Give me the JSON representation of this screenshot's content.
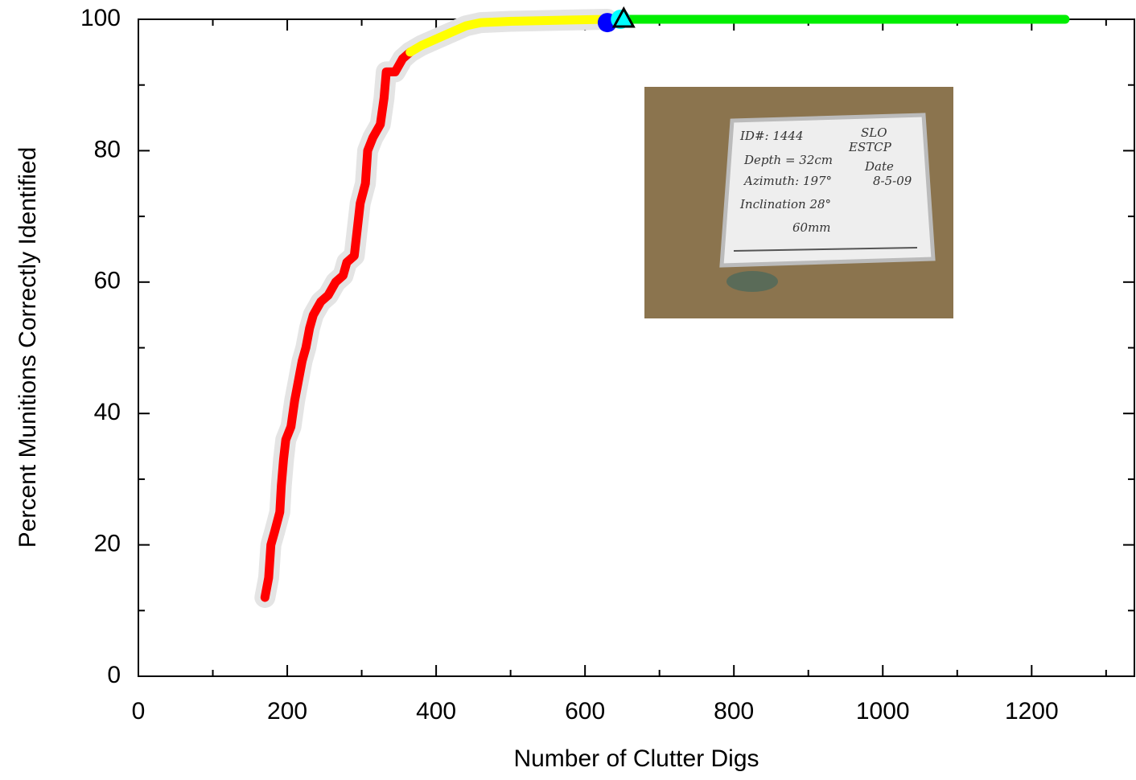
{
  "chart_data": {
    "type": "line",
    "xlabel": "Number of Clutter Digs",
    "ylabel": "Percent Munitions Correctly Identified",
    "xlim": [
      0,
      1338
    ],
    "ylim": [
      0,
      100
    ],
    "xticks": [
      0,
      200,
      400,
      600,
      800,
      1000,
      1200
    ],
    "xminorticks": [
      100,
      300,
      500,
      700,
      900,
      1100,
      1300
    ],
    "yticks": [
      0,
      20,
      40,
      60,
      80,
      100
    ],
    "yminorticks": [
      10,
      30,
      50,
      70,
      90
    ],
    "series": [
      {
        "color": "#ff0000",
        "x": [
          170,
          175,
          178,
          183,
          190,
          192,
          195,
          198,
          205,
          210,
          215,
          220,
          225,
          230,
          235,
          240,
          245,
          255,
          265,
          275,
          280,
          290,
          293,
          298,
          305,
          308,
          315,
          325,
          330,
          333,
          345,
          350,
          355,
          365
        ],
        "values": [
          12,
          15,
          20,
          22,
          25,
          29,
          33,
          36,
          38,
          42,
          45,
          48,
          50,
          53,
          55,
          56,
          57,
          58,
          60,
          61,
          63,
          64,
          67,
          72,
          75,
          80,
          82,
          84,
          88,
          92,
          92,
          93,
          94,
          95
        ]
      },
      {
        "color": "#ffff00",
        "x": [
          365,
          380,
          400,
          420,
          440,
          460,
          500,
          580,
          630
        ],
        "values": [
          95,
          96,
          97,
          98,
          99,
          99.5,
          99.7,
          99.9,
          100
        ]
      },
      {
        "color": "#00ee00",
        "x": [
          650,
          1245
        ],
        "values": [
          100,
          100
        ]
      }
    ],
    "markers": [
      {
        "shape": "circle",
        "color": "#0000ff",
        "x": 630,
        "value": 99.5
      },
      {
        "shape": "triangle",
        "color": "#00ffff",
        "x": 652,
        "value": 100
      }
    ],
    "inset_photo": {
      "lines": [
        "ID#: 1444",
        "SLO",
        "ESTCP",
        "Depth = 32cm",
        "Date",
        "Azimuth: 197°",
        "8-5-09",
        "Inclination 28°",
        "60mm"
      ]
    }
  }
}
